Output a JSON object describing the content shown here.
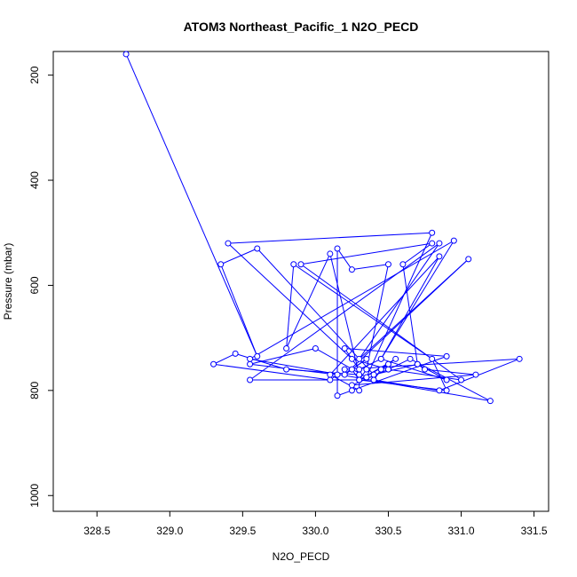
{
  "chart_data": {
    "type": "line",
    "title": "ATOM3 Northeast_Pacific_1 N2O_PECD",
    "xlabel": "N2O_PECD",
    "ylabel": "Pressure (mbar)",
    "xlim": [
      328.2,
      331.6
    ],
    "ylim": [
      1030,
      155
    ],
    "y_reversed": true,
    "x_ticks": [
      328.5,
      329.0,
      329.5,
      330.0,
      330.5,
      331.0,
      331.5
    ],
    "x_tick_labels": [
      "328.5",
      "329.0",
      "329.5",
      "330.0",
      "330.5",
      "331.0",
      "331.5"
    ],
    "y_ticks": [
      200,
      400,
      600,
      800,
      1000
    ],
    "y_tick_labels": [
      "200",
      "400",
      "600",
      "800",
      "1000"
    ],
    "grid": false,
    "series_color": "#0000ff",
    "marker": "open-circle",
    "x": [
      328.7,
      329.6,
      329.35,
      329.6,
      330.4,
      330.7,
      330.9,
      330.45,
      330.3,
      330.2,
      330.9,
      330.25,
      330.15,
      330.15,
      330.25,
      330.5,
      330.35,
      330.3,
      330.9,
      330.8,
      329.85,
      329.8,
      330.1,
      330.3,
      329.8,
      329.45,
      329.3,
      330.1,
      330.15,
      329.55,
      330.0,
      330.35,
      330.8,
      329.4,
      330.25,
      330.5,
      331.0,
      329.9,
      330.8,
      330.6,
      330.7,
      330.75,
      331.1,
      330.25,
      330.5,
      330.65,
      331.2,
      329.55,
      330.95,
      330.45,
      330.85,
      330.1,
      330.3,
      330.3,
      330.55,
      330.45,
      330.4,
      329.55,
      330.85,
      330.3,
      331.05,
      330.2,
      330.35,
      330.25,
      330.3,
      330.5,
      330.45,
      330.4,
      330.85,
      331.4,
      330.2
    ],
    "y": [
      160,
      735,
      560,
      530,
      770,
      750,
      780,
      740,
      760,
      720,
      735,
      800,
      810,
      530,
      570,
      560,
      760,
      780,
      800,
      740,
      560,
      720,
      540,
      770,
      760,
      730,
      750,
      780,
      770,
      750,
      720,
      775,
      500,
      520,
      740,
      760,
      780,
      560,
      520,
      560,
      750,
      760,
      770,
      790,
      760,
      740,
      820,
      740,
      515,
      740,
      545,
      770,
      800,
      780,
      740,
      760,
      780,
      780,
      520,
      740,
      550,
      770,
      740,
      760,
      780,
      750,
      760,
      780,
      800,
      740,
      760
    ]
  }
}
